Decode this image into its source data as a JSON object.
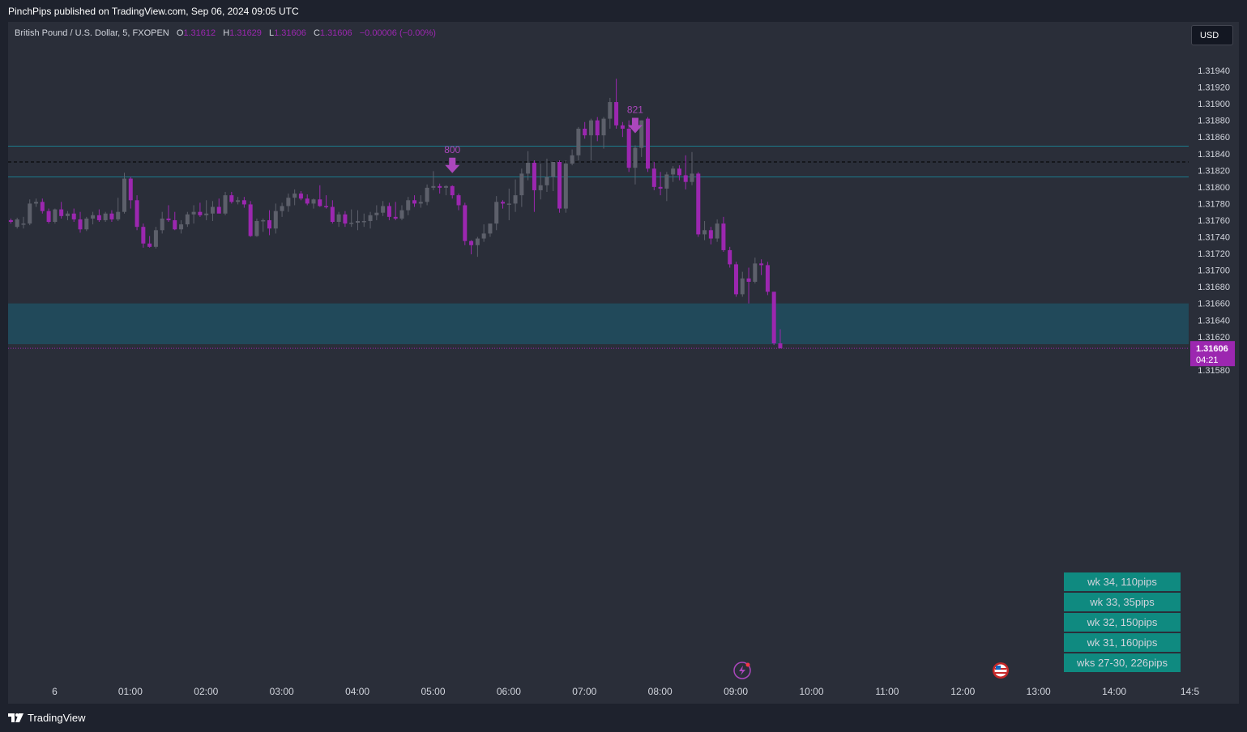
{
  "header": {
    "published_by": "PinchPips published on TradingView.com, Sep 06, 2024 09:05 UTC"
  },
  "legend": {
    "symbol": "British Pound / U.S. Dollar, 5, FXOPEN",
    "o_label": "O",
    "o": "1.31612",
    "h_label": "H",
    "h": "1.31629",
    "l_label": "L",
    "l": "1.31606",
    "c_label": "C",
    "c": "1.31606",
    "change": "−0.00006 (−0.00%)"
  },
  "currency_button": "USD",
  "footer": {
    "logo_text": "TradingView",
    "icon": "tradingview-logo-icon"
  },
  "colors": {
    "background": "#2a2e39",
    "bull": "#5d606b",
    "bear": "#9c27b0",
    "level_line": "#1b7a8c",
    "zone": "#21495a",
    "box": "#0f8a80",
    "accent": "#ab47bc"
  },
  "chart_data": {
    "type": "candlestick",
    "interval": "5",
    "ylim": [
      1.3157,
      1.3197
    ],
    "y_ticks": [
      "1.31940",
      "1.31920",
      "1.31900",
      "1.31880",
      "1.31860",
      "1.31840",
      "1.31820",
      "1.31800",
      "1.31780",
      "1.31760",
      "1.31740",
      "1.31720",
      "1.31700",
      "1.31680",
      "1.31660",
      "1.31640",
      "1.31620",
      "1.31580"
    ],
    "x_ticks": [
      "6",
      "01:00",
      "02:00",
      "03:00",
      "04:00",
      "05:00",
      "06:00",
      "07:00",
      "08:00",
      "09:00",
      "10:00",
      "11:00",
      "12:00",
      "13:00",
      "14:00",
      "14:5"
    ],
    "x_start": "2024-09-05 23:00",
    "x_step_minutes": 5,
    "candles": [
      {
        "o": 1.3176,
        "h": 1.31762,
        "l": 1.31756,
        "c": 1.31758
      },
      {
        "o": 1.31752,
        "h": 1.31763,
        "l": 1.3175,
        "c": 1.31761
      },
      {
        "o": 1.31756,
        "h": 1.31764,
        "l": 1.3175,
        "c": 1.31756
      },
      {
        "o": 1.31756,
        "h": 1.31785,
        "l": 1.31754,
        "c": 1.3178
      },
      {
        "o": 1.3178,
        "h": 1.31786,
        "l": 1.31776,
        "c": 1.31782
      },
      {
        "o": 1.31782,
        "h": 1.31786,
        "l": 1.31768,
        "c": 1.31771
      },
      {
        "o": 1.31771,
        "h": 1.31774,
        "l": 1.31756,
        "c": 1.31758
      },
      {
        "o": 1.31758,
        "h": 1.31774,
        "l": 1.31756,
        "c": 1.31773
      },
      {
        "o": 1.31773,
        "h": 1.31782,
        "l": 1.31762,
        "c": 1.31765
      },
      {
        "o": 1.31765,
        "h": 1.31771,
        "l": 1.3176,
        "c": 1.31768
      },
      {
        "o": 1.31768,
        "h": 1.31774,
        "l": 1.31758,
        "c": 1.31761
      },
      {
        "o": 1.31761,
        "h": 1.3177,
        "l": 1.31745,
        "c": 1.31749
      },
      {
        "o": 1.31749,
        "h": 1.31764,
        "l": 1.31747,
        "c": 1.31762
      },
      {
        "o": 1.31762,
        "h": 1.3177,
        "l": 1.31755,
        "c": 1.31766
      },
      {
        "o": 1.31766,
        "h": 1.31773,
        "l": 1.31758,
        "c": 1.3176
      },
      {
        "o": 1.3176,
        "h": 1.3177,
        "l": 1.31758,
        "c": 1.31768
      },
      {
        "o": 1.31768,
        "h": 1.31772,
        "l": 1.31758,
        "c": 1.31761
      },
      {
        "o": 1.31761,
        "h": 1.31787,
        "l": 1.31759,
        "c": 1.3177
      },
      {
        "o": 1.3177,
        "h": 1.31817,
        "l": 1.31768,
        "c": 1.3181
      },
      {
        "o": 1.3181,
        "h": 1.31812,
        "l": 1.31774,
        "c": 1.31784
      },
      {
        "o": 1.31784,
        "h": 1.3179,
        "l": 1.31748,
        "c": 1.31752
      },
      {
        "o": 1.31752,
        "h": 1.31756,
        "l": 1.31727,
        "c": 1.31732
      },
      {
        "o": 1.31732,
        "h": 1.31741,
        "l": 1.31727,
        "c": 1.31728
      },
      {
        "o": 1.31728,
        "h": 1.31752,
        "l": 1.31726,
        "c": 1.31748
      },
      {
        "o": 1.31748,
        "h": 1.3177,
        "l": 1.31744,
        "c": 1.31762
      },
      {
        "o": 1.31762,
        "h": 1.31778,
        "l": 1.31758,
        "c": 1.3176
      },
      {
        "o": 1.3176,
        "h": 1.3177,
        "l": 1.31748,
        "c": 1.31749
      },
      {
        "o": 1.31749,
        "h": 1.3176,
        "l": 1.31744,
        "c": 1.31755
      },
      {
        "o": 1.31755,
        "h": 1.3177,
        "l": 1.31752,
        "c": 1.31767
      },
      {
        "o": 1.31767,
        "h": 1.31778,
        "l": 1.31756,
        "c": 1.3177
      },
      {
        "o": 1.3177,
        "h": 1.31781,
        "l": 1.31764,
        "c": 1.31766
      },
      {
        "o": 1.31766,
        "h": 1.31784,
        "l": 1.3176,
        "c": 1.31768
      },
      {
        "o": 1.31768,
        "h": 1.31783,
        "l": 1.31759,
        "c": 1.31776
      },
      {
        "o": 1.31776,
        "h": 1.31786,
        "l": 1.3177,
        "c": 1.31768
      },
      {
        "o": 1.31768,
        "h": 1.31794,
        "l": 1.31766,
        "c": 1.3179
      },
      {
        "o": 1.3179,
        "h": 1.31794,
        "l": 1.3178,
        "c": 1.31782
      },
      {
        "o": 1.31782,
        "h": 1.31788,
        "l": 1.31779,
        "c": 1.31784
      },
      {
        "o": 1.31784,
        "h": 1.31788,
        "l": 1.31775,
        "c": 1.31779
      },
      {
        "o": 1.31779,
        "h": 1.31783,
        "l": 1.3174,
        "c": 1.31741
      },
      {
        "o": 1.31741,
        "h": 1.31762,
        "l": 1.3174,
        "c": 1.31759
      },
      {
        "o": 1.31759,
        "h": 1.31762,
        "l": 1.31746,
        "c": 1.3176
      },
      {
        "o": 1.3176,
        "h": 1.31772,
        "l": 1.31742,
        "c": 1.3175
      },
      {
        "o": 1.3175,
        "h": 1.3178,
        "l": 1.31744,
        "c": 1.31771
      },
      {
        "o": 1.31771,
        "h": 1.31781,
        "l": 1.31764,
        "c": 1.31777
      },
      {
        "o": 1.31777,
        "h": 1.31792,
        "l": 1.3177,
        "c": 1.31787
      },
      {
        "o": 1.31787,
        "h": 1.31797,
        "l": 1.31778,
        "c": 1.31792
      },
      {
        "o": 1.31792,
        "h": 1.31795,
        "l": 1.31784,
        "c": 1.31786
      },
      {
        "o": 1.31786,
        "h": 1.31791,
        "l": 1.31778,
        "c": 1.3178
      },
      {
        "o": 1.3178,
        "h": 1.31786,
        "l": 1.31774,
        "c": 1.31785
      },
      {
        "o": 1.31785,
        "h": 1.31802,
        "l": 1.31776,
        "c": 1.31777
      },
      {
        "o": 1.31777,
        "h": 1.3179,
        "l": 1.31774,
        "c": 1.31776
      },
      {
        "o": 1.31776,
        "h": 1.31784,
        "l": 1.31756,
        "c": 1.31758
      },
      {
        "o": 1.31758,
        "h": 1.3177,
        "l": 1.31752,
        "c": 1.31767
      },
      {
        "o": 1.31767,
        "h": 1.31771,
        "l": 1.31752,
        "c": 1.31756
      },
      {
        "o": 1.31756,
        "h": 1.31773,
        "l": 1.31752,
        "c": 1.31757
      },
      {
        "o": 1.31757,
        "h": 1.31772,
        "l": 1.31748,
        "c": 1.31759
      },
      {
        "o": 1.31759,
        "h": 1.31768,
        "l": 1.31752,
        "c": 1.31759
      },
      {
        "o": 1.31759,
        "h": 1.3177,
        "l": 1.3175,
        "c": 1.31766
      },
      {
        "o": 1.31766,
        "h": 1.31778,
        "l": 1.3176,
        "c": 1.31769
      },
      {
        "o": 1.31769,
        "h": 1.31783,
        "l": 1.31765,
        "c": 1.31777
      },
      {
        "o": 1.31777,
        "h": 1.31781,
        "l": 1.3176,
        "c": 1.31764
      },
      {
        "o": 1.31764,
        "h": 1.31782,
        "l": 1.3176,
        "c": 1.31762
      },
      {
        "o": 1.31762,
        "h": 1.31778,
        "l": 1.3176,
        "c": 1.31772
      },
      {
        "o": 1.31772,
        "h": 1.31788,
        "l": 1.31766,
        "c": 1.31784
      },
      {
        "o": 1.31784,
        "h": 1.3179,
        "l": 1.31776,
        "c": 1.3178
      },
      {
        "o": 1.3178,
        "h": 1.3179,
        "l": 1.31775,
        "c": 1.31782
      },
      {
        "o": 1.31782,
        "h": 1.31803,
        "l": 1.31778,
        "c": 1.31799
      },
      {
        "o": 1.31799,
        "h": 1.31819,
        "l": 1.31796,
        "c": 1.31801
      },
      {
        "o": 1.31801,
        "h": 1.31804,
        "l": 1.31792,
        "c": 1.31799
      },
      {
        "o": 1.31799,
        "h": 1.31802,
        "l": 1.3179,
        "c": 1.31801
      },
      {
        "o": 1.31801,
        "h": 1.31802,
        "l": 1.31786,
        "c": 1.3179
      },
      {
        "o": 1.3179,
        "h": 1.31792,
        "l": 1.31772,
        "c": 1.31778
      },
      {
        "o": 1.31778,
        "h": 1.31781,
        "l": 1.3173,
        "c": 1.31735
      },
      {
        "o": 1.31735,
        "h": 1.31736,
        "l": 1.31719,
        "c": 1.3173
      },
      {
        "o": 1.3173,
        "h": 1.3174,
        "l": 1.31716,
        "c": 1.31738
      },
      {
        "o": 1.31738,
        "h": 1.31755,
        "l": 1.31734,
        "c": 1.31744
      },
      {
        "o": 1.31744,
        "h": 1.31754,
        "l": 1.3174,
        "c": 1.31756
      },
      {
        "o": 1.31756,
        "h": 1.31789,
        "l": 1.31748,
        "c": 1.31782
      },
      {
        "o": 1.31782,
        "h": 1.31784,
        "l": 1.31774,
        "c": 1.3178
      },
      {
        "o": 1.3178,
        "h": 1.31798,
        "l": 1.3176,
        "c": 1.3178
      },
      {
        "o": 1.3178,
        "h": 1.31809,
        "l": 1.3177,
        "c": 1.3179
      },
      {
        "o": 1.3179,
        "h": 1.31822,
        "l": 1.31776,
        "c": 1.31816
      },
      {
        "o": 1.31816,
        "h": 1.31843,
        "l": 1.31808,
        "c": 1.31829
      },
      {
        "o": 1.31829,
        "h": 1.31832,
        "l": 1.3177,
        "c": 1.31796
      },
      {
        "o": 1.31796,
        "h": 1.31828,
        "l": 1.31785,
        "c": 1.31802
      },
      {
        "o": 1.31802,
        "h": 1.31834,
        "l": 1.31794,
        "c": 1.31812
      },
      {
        "o": 1.31812,
        "h": 1.3183,
        "l": 1.31795,
        "c": 1.3183
      },
      {
        "o": 1.3183,
        "h": 1.31832,
        "l": 1.31769,
        "c": 1.31774
      },
      {
        "o": 1.31774,
        "h": 1.31832,
        "l": 1.31769,
        "c": 1.31828
      },
      {
        "o": 1.31828,
        "h": 1.31845,
        "l": 1.31826,
        "c": 1.31838
      },
      {
        "o": 1.31838,
        "h": 1.31872,
        "l": 1.31832,
        "c": 1.3187
      },
      {
        "o": 1.3187,
        "h": 1.31878,
        "l": 1.31858,
        "c": 1.31862
      },
      {
        "o": 1.31862,
        "h": 1.31882,
        "l": 1.31832,
        "c": 1.3188
      },
      {
        "o": 1.3188,
        "h": 1.31884,
        "l": 1.31855,
        "c": 1.31862
      },
      {
        "o": 1.31862,
        "h": 1.31884,
        "l": 1.31846,
        "c": 1.31882
      },
      {
        "o": 1.31882,
        "h": 1.31907,
        "l": 1.3187,
        "c": 1.31902
      },
      {
        "o": 1.31902,
        "h": 1.3193,
        "l": 1.3187,
        "c": 1.31874
      },
      {
        "o": 1.31874,
        "h": 1.31878,
        "l": 1.3186,
        "c": 1.3187
      },
      {
        "o": 1.3187,
        "h": 1.3188,
        "l": 1.31818,
        "c": 1.31823
      },
      {
        "o": 1.31823,
        "h": 1.3185,
        "l": 1.31803,
        "c": 1.31847
      },
      {
        "o": 1.31847,
        "h": 1.3188,
        "l": 1.31836,
        "c": 1.3188
      },
      {
        "o": 1.31882,
        "h": 1.31884,
        "l": 1.31818,
        "c": 1.31822
      },
      {
        "o": 1.31822,
        "h": 1.3183,
        "l": 1.31796,
        "c": 1.318
      },
      {
        "o": 1.318,
        "h": 1.31818,
        "l": 1.3179,
        "c": 1.31798
      },
      {
        "o": 1.31798,
        "h": 1.31818,
        "l": 1.31783,
        "c": 1.31815
      },
      {
        "o": 1.31815,
        "h": 1.31825,
        "l": 1.31806,
        "c": 1.31822
      },
      {
        "o": 1.31822,
        "h": 1.31826,
        "l": 1.31808,
        "c": 1.31814
      },
      {
        "o": 1.31814,
        "h": 1.31838,
        "l": 1.31797,
        "c": 1.31806
      },
      {
        "o": 1.31806,
        "h": 1.31842,
        "l": 1.31802,
        "c": 1.31816
      },
      {
        "o": 1.31816,
        "h": 1.31818,
        "l": 1.3174,
        "c": 1.31743
      },
      {
        "o": 1.31743,
        "h": 1.31759,
        "l": 1.31736,
        "c": 1.31748
      },
      {
        "o": 1.31748,
        "h": 1.31752,
        "l": 1.31731,
        "c": 1.31738
      },
      {
        "o": 1.31738,
        "h": 1.31761,
        "l": 1.31734,
        "c": 1.31756
      },
      {
        "o": 1.31756,
        "h": 1.31764,
        "l": 1.31722,
        "c": 1.31724
      },
      {
        "o": 1.31724,
        "h": 1.31728,
        "l": 1.31703,
        "c": 1.31707
      },
      {
        "o": 1.31707,
        "h": 1.3171,
        "l": 1.31668,
        "c": 1.31671
      },
      {
        "o": 1.31671,
        "h": 1.31698,
        "l": 1.31668,
        "c": 1.3169
      },
      {
        "o": 1.3169,
        "h": 1.31703,
        "l": 1.3166,
        "c": 1.31686
      },
      {
        "o": 1.31686,
        "h": 1.31715,
        "l": 1.31684,
        "c": 1.31708
      },
      {
        "o": 1.31708,
        "h": 1.31713,
        "l": 1.31694,
        "c": 1.31706
      },
      {
        "o": 1.31706,
        "h": 1.3171,
        "l": 1.3167,
        "c": 1.31674
      },
      {
        "o": 1.31674,
        "h": 1.31674,
        "l": 1.3161,
        "c": 1.31612
      },
      {
        "o": 1.31612,
        "h": 1.31629,
        "l": 1.31606,
        "c": 1.31606
      }
    ],
    "horizontal_levels": [
      {
        "price": 1.31849,
        "style": "solid"
      },
      {
        "price": 1.3183,
        "style": "dashed"
      },
      {
        "price": 1.31812,
        "style": "solid"
      }
    ],
    "zone": {
      "from": 1.31611,
      "to": 1.3166
    },
    "annotations": [
      {
        "label": "800",
        "candle": 70
      },
      {
        "label": "821",
        "candle": 99
      }
    ],
    "last_price": {
      "value": "1.31606",
      "countdown": "04:21"
    },
    "info_boxes": [
      "wk 34, 110pips",
      "wk 33, 35pips",
      "wk 32, 150pips",
      "wk 31, 160pips",
      "wks 27-30, 226pips"
    ],
    "event_icons": [
      {
        "icon": "lightning-event-icon",
        "time": "09:05"
      },
      {
        "icon": "us-flag-event-icon",
        "time": "12:30"
      }
    ]
  }
}
